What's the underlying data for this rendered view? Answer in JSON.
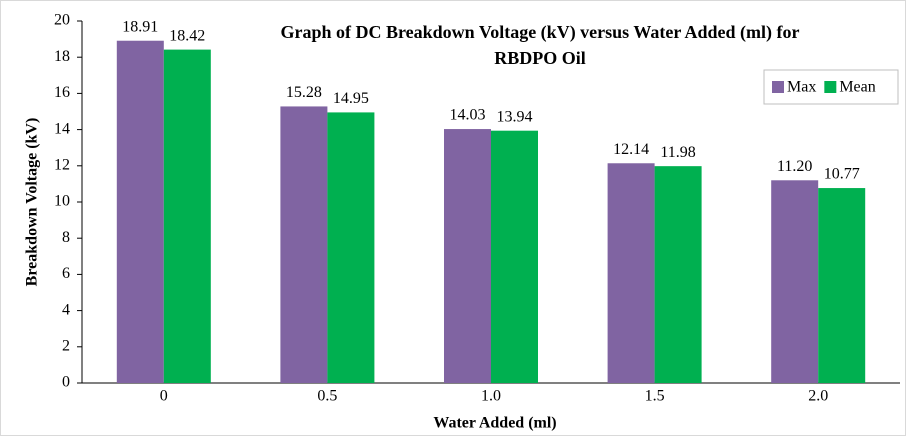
{
  "chart_data": {
    "type": "bar",
    "title": [
      "Graph of DC Breakdown Voltage (kV) versus Water Added (ml) for",
      "RBDPO Oil"
    ],
    "x_label": "Water Added (ml)",
    "y_label": "Breakdown Voltage (kV)",
    "categories": [
      "0",
      "0.5",
      "1.0",
      "1.5",
      "2.0"
    ],
    "series": [
      {
        "name": "Max",
        "color": "#8064a2",
        "values": [
          18.91,
          15.28,
          14.03,
          12.14,
          11.2
        ],
        "value_labels": [
          "18.91",
          "15.28",
          "14.03",
          "12.14",
          "11.20"
        ]
      },
      {
        "name": "Mean",
        "color": "#00b050",
        "values": [
          18.42,
          14.95,
          13.94,
          11.98,
          10.77
        ],
        "value_labels": [
          "18.42",
          "14.95",
          "13.94",
          "11.98",
          "10.77"
        ]
      }
    ],
    "ylim": [
      0,
      20
    ],
    "yticks": [
      0,
      2,
      4,
      6,
      8,
      10,
      12,
      14,
      16,
      18,
      20
    ],
    "grid": false,
    "legend": "upper right"
  }
}
